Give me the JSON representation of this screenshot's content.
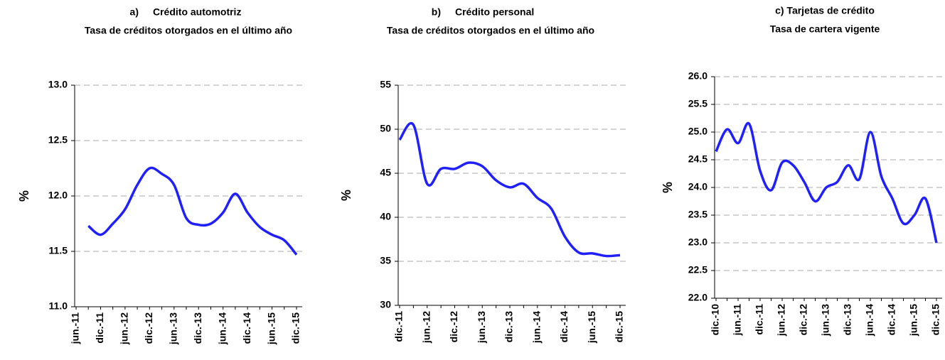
{
  "chart_data": [
    {
      "type": "line",
      "label": "a)",
      "title": "Crédito automotriz",
      "subtitle": "Tasa de créditos otorgados en el último año",
      "ylabel": "%",
      "categories": [
        "jun.-11",
        null,
        "dic.-11",
        null,
        "jun.-12",
        null,
        "dic.-12",
        null,
        "jun.-13",
        null,
        "dic.-13",
        null,
        "jun.-14",
        null,
        "dic.-14",
        null,
        "jun.-15",
        null,
        "dic.-15"
      ],
      "series": [
        {
          "name": null,
          "color": "#1f1fff",
          "values": [
            null,
            11.73,
            11.65,
            11.75,
            11.88,
            12.1,
            12.25,
            12.2,
            12.1,
            11.8,
            11.74,
            11.75,
            11.85,
            12.02,
            11.85,
            11.72,
            11.65,
            11.6,
            11.47
          ]
        }
      ],
      "ylim": [
        11.0,
        13.0
      ],
      "yticks": [
        {
          "value": 11.0,
          "label": "11.0"
        },
        11.5,
        {
          "value": 12.0,
          "label": "12.0"
        },
        12.5,
        {
          "value": 13.0,
          "label": "13.0"
        }
      ],
      "grid": true
    },
    {
      "type": "line",
      "label": "b)",
      "title": "Crédito personal",
      "subtitle": "Tasa de créditos otorgados en el último año",
      "ylabel": "%",
      "categories": [
        "dic.-11",
        null,
        "jun.-12",
        null,
        "dic.-12",
        null,
        "jun.-13",
        null,
        "dic.-13",
        null,
        "jun.-14",
        null,
        "dic.-14",
        null,
        "jun.-15",
        null,
        "dic.-15"
      ],
      "series": [
        {
          "name": null,
          "color": "#1f1fff",
          "values": [
            48.8,
            50.5,
            43.8,
            45.5,
            45.5,
            46.2,
            45.8,
            44.2,
            43.4,
            43.8,
            42.2,
            41,
            37.8,
            36,
            35.9,
            35.6,
            35.7
          ]
        }
      ],
      "ylim": [
        30,
        55
      ],
      "yticks": [
        30,
        35,
        40,
        45,
        50,
        55
      ],
      "grid": true
    },
    {
      "type": "line",
      "title": "c) Tarjetas de crédito",
      "subtitle": "Tasa de cartera vigente",
      "ylabel": "%",
      "categories": [
        "dic.-10",
        null,
        "jun.-11",
        null,
        "dic.-11",
        null,
        "jun.-12",
        null,
        "dic.-12",
        null,
        "jun.-13",
        null,
        "dic.-13",
        null,
        "jun.-14",
        null,
        "dic.-14",
        null,
        "jun.-15",
        null,
        "dic.-15"
      ],
      "series": [
        {
          "name": null,
          "color": "#1f1fff",
          "values": [
            24.65,
            25.05,
            24.8,
            25.15,
            24.3,
            23.95,
            24.45,
            24.4,
            24.1,
            23.75,
            24.0,
            24.1,
            24.4,
            24.15,
            25.0,
            24.2,
            23.8,
            23.35,
            23.5,
            23.8,
            23.0
          ]
        }
      ],
      "ylim": [
        22.0,
        26.0
      ],
      "yticks": [
        {
          "value": 22.0,
          "label": "22.0"
        },
        22.5,
        {
          "value": 23.0,
          "label": "23.0"
        },
        23.5,
        {
          "value": 24.0,
          "label": "24.0"
        },
        24.5,
        {
          "value": 25.0,
          "label": "25.0"
        },
        25.5,
        {
          "value": 26.0,
          "label": "26.0"
        }
      ],
      "grid": true
    }
  ]
}
